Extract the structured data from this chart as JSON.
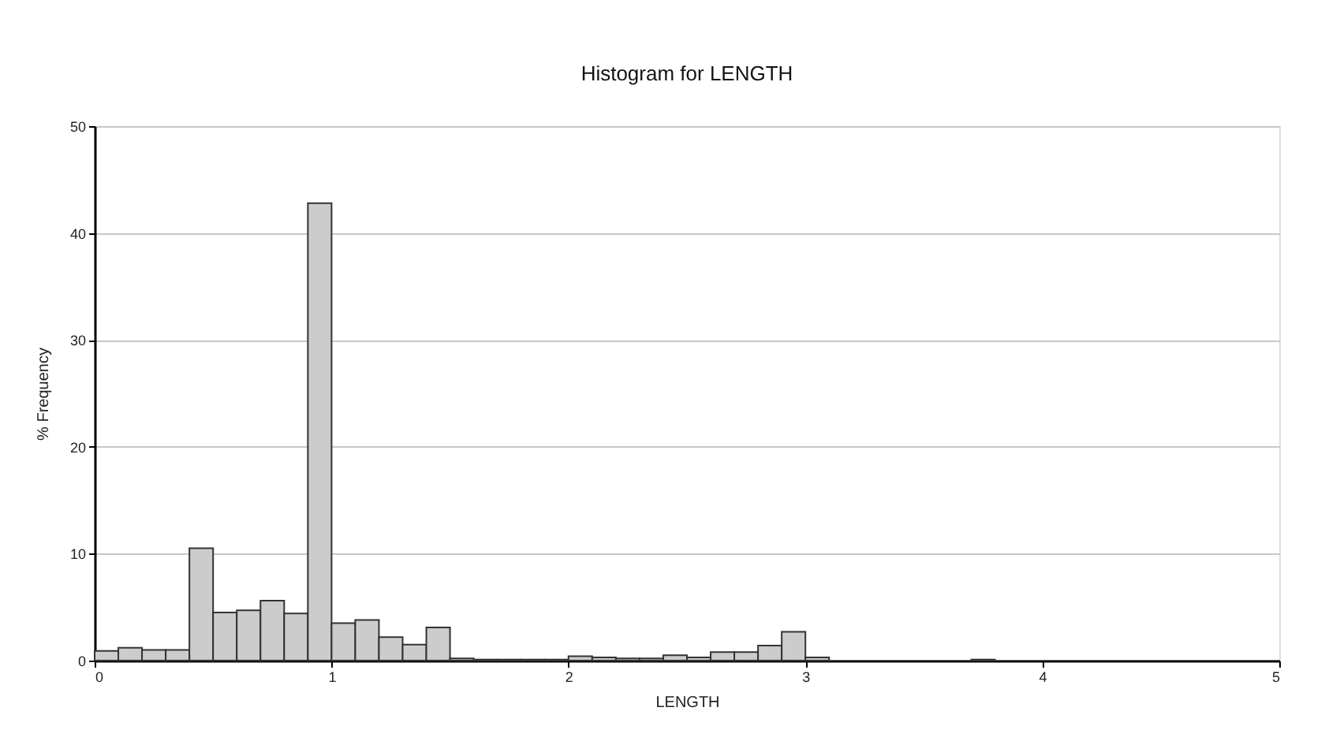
{
  "chart_data": {
    "type": "histogram",
    "title": "Histogram for LENGTH",
    "xlabel": "LENGTH",
    "ylabel": "% Frequency",
    "bins": [
      0,
      0.1,
      0.2,
      0.3,
      0.4,
      0.5,
      0.6,
      0.7,
      0.8,
      0.9,
      1.0,
      1.1,
      1.2,
      1.3,
      1.4,
      1.5,
      1.6,
      1.7,
      1.8,
      1.9,
      2.0,
      2.1,
      2.2,
      2.3,
      2.4,
      2.5,
      2.6,
      2.7,
      2.8,
      2.9,
      3.0,
      3.1,
      3.2,
      3.3,
      3.4,
      3.5,
      3.6,
      3.7,
      3.8,
      3.9,
      4.0,
      4.1,
      4.2,
      4.3,
      4.4,
      4.5,
      4.6,
      4.7,
      4.8,
      4.9,
      5.0
    ],
    "values": [
      0.9,
      1.2,
      1.0,
      1.0,
      10.5,
      4.5,
      4.7,
      5.6,
      4.4,
      42.8,
      3.5,
      3.8,
      2.2,
      1.5,
      3.1,
      0.2,
      0.1,
      0.1,
      0.1,
      0.1,
      0.4,
      0.3,
      0.2,
      0.2,
      0.5,
      0.3,
      0.8,
      0.8,
      1.4,
      2.7,
      0.3,
      0,
      0,
      0,
      0,
      0,
      0,
      0.1,
      0,
      0,
      0,
      0,
      0,
      0,
      0,
      0,
      0,
      0,
      0,
      0
    ],
    "color": "#cccccc",
    "xlim": [
      0,
      5
    ],
    "xticks": [
      0,
      1,
      2,
      3,
      4,
      5
    ],
    "ylim": [
      0,
      50
    ],
    "yticks": [
      0,
      10,
      20,
      30,
      40,
      50
    ],
    "grid": "y"
  }
}
